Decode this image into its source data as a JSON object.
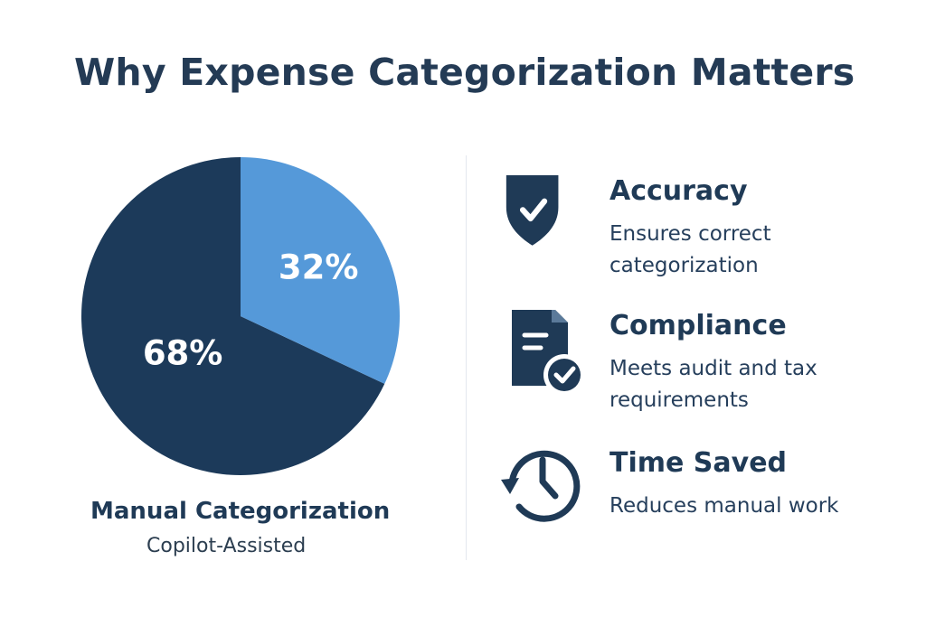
{
  "page": {
    "title": "Why Expense Categorization Matters"
  },
  "chart_data": {
    "type": "pie",
    "slices": [
      {
        "label": "Manual Categorization",
        "value": 68,
        "display": "68%",
        "color": "#1c3a5a"
      },
      {
        "label": "Copilot-Assisted",
        "value": 32,
        "display": "32%",
        "color": "#5599d9"
      }
    ],
    "legend": [
      "Manual Categorization",
      "Copilot-Assisted"
    ]
  },
  "features": [
    {
      "icon": "shield-check-icon",
      "title": "Accuracy",
      "description": "Ensures correct categorization"
    },
    {
      "icon": "document-check-icon",
      "title": "Compliance",
      "description": "Meets audit and tax requirements"
    },
    {
      "icon": "clock-history-icon",
      "title": "Time Saved",
      "description": "Reduces manual work"
    }
  ],
  "colors": {
    "primary": "#1f3a56",
    "accent": "#5599d9",
    "text": "#263f5c"
  }
}
